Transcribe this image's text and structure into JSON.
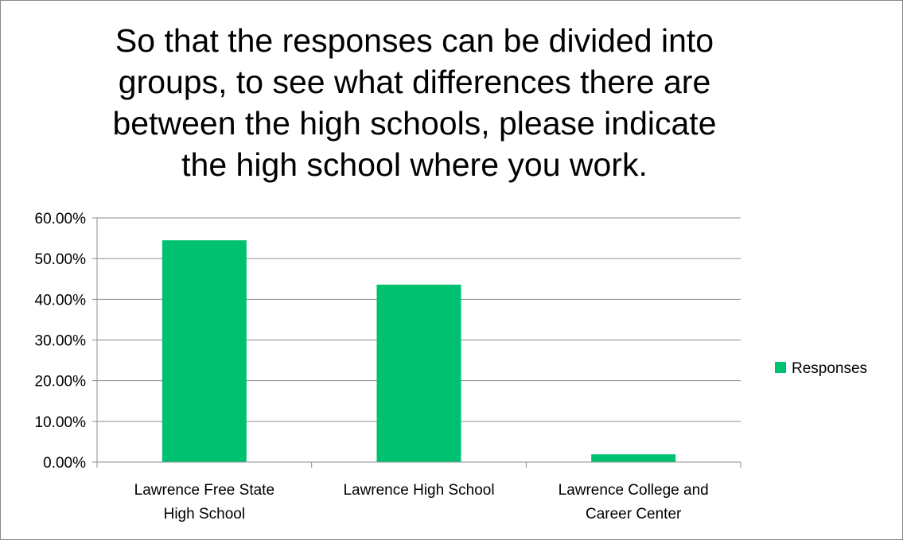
{
  "chart_data": {
    "type": "bar",
    "title": "So that the responses can be divided into\ngroups, to see what differences there are\nbetween the high schools, please indicate\nthe high school where you work.",
    "categories": [
      [
        "Lawrence Free State",
        "High School"
      ],
      [
        "Lawrence High School"
      ],
      [
        "Lawrence College and",
        "Career Center"
      ]
    ],
    "series": [
      {
        "name": "Responses",
        "values": [
          54.5,
          43.6,
          1.9
        ],
        "color": "#00c170"
      }
    ],
    "ylim": [
      0,
      60
    ],
    "yticks": [
      "0.00%",
      "10.00%",
      "20.00%",
      "30.00%",
      "40.00%",
      "50.00%",
      "60.00%"
    ],
    "grid": true,
    "legend_position": "right"
  }
}
